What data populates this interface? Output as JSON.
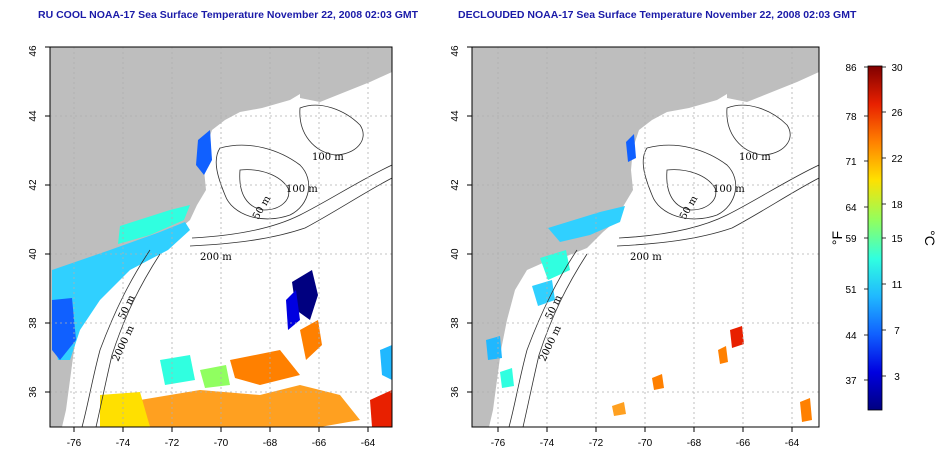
{
  "titles": {
    "left": "RU COOL NOAA-17 Sea Surface Temperature November 22, 2008 02:03 GMT",
    "right": "DECLOUDED NOAA-17 Sea Surface Temperature November 22, 2008 02:03 GMT"
  },
  "map": {
    "lon_range": [
      -77,
      -63
    ],
    "lat_range": [
      35,
      46
    ],
    "lon_ticks": [
      -76,
      -74,
      -72,
      -70,
      -68,
      -66,
      -64
    ],
    "lat_ticks": [
      36,
      38,
      40,
      42,
      44,
      46
    ],
    "lon_tick_labels": [
      "-76",
      "-74",
      "-72",
      "-70",
      "-68",
      "-66",
      "-64"
    ],
    "lat_tick_labels": [
      "36",
      "38",
      "40",
      "42",
      "44",
      "46"
    ],
    "land_color": "#bebebe",
    "grid": true,
    "contour_labels": [
      "100 m",
      "100 m",
      "50 m",
      "200 m",
      "50 m",
      "2000 m"
    ]
  },
  "colorbar": {
    "fahrenheit_labels": [
      "86",
      "78",
      "71",
      "64",
      "59",
      "51",
      "44",
      "37"
    ],
    "celsius_labels": [
      "30",
      "26",
      "22",
      "18",
      "15",
      "11",
      "7",
      "3"
    ],
    "fahrenheit_unit": "°F",
    "celsius_unit": "°C",
    "range_c": [
      0,
      30
    ],
    "colors": [
      "#000080",
      "#0000e0",
      "#1060ff",
      "#20b8ff",
      "#30ffe0",
      "#90ff60",
      "#ffe000",
      "#ff8000",
      "#e82000",
      "#800000"
    ]
  }
}
